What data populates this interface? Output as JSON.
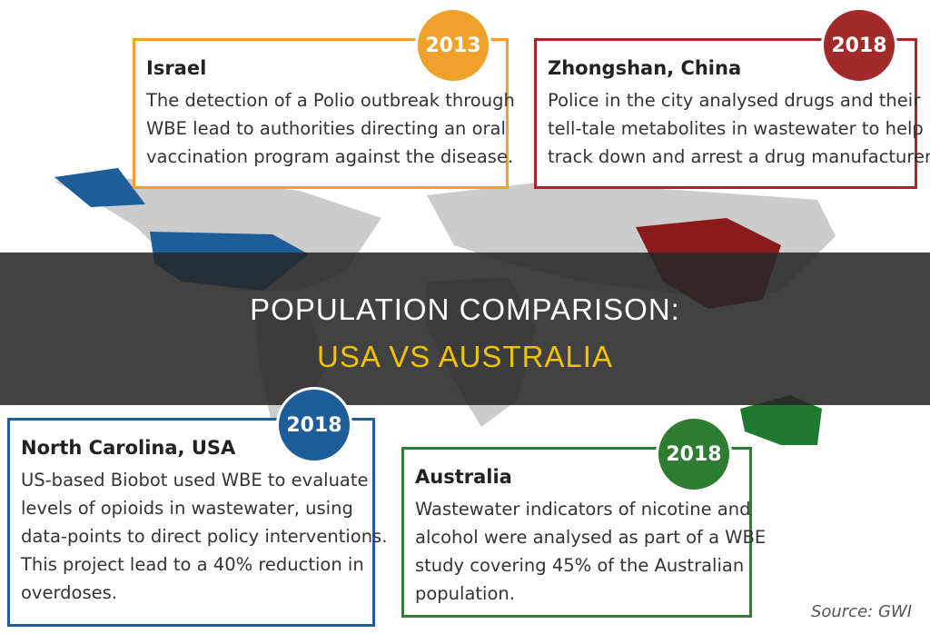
{
  "banner": {
    "line1": "POPULATION COMPARISON:",
    "line2": "USA VS AUSTRALIA"
  },
  "cards": [
    {
      "year": "2013",
      "title": "Israel",
      "body": [
        "The detection of a Polio outbreak through",
        "WBE lead to authorities directing an oral",
        "vaccination program against the disease."
      ]
    },
    {
      "year": "2018",
      "title": "Zhongshan, China",
      "body": [
        "Police in the city analysed drugs and their",
        "tell-tale metabolites in wastewater to help",
        "track down and arrest a drug manufacturer."
      ]
    },
    {
      "year": "2018",
      "title": "North Carolina, USA",
      "body": [
        "US-based Biobot used WBE to evaluate",
        "levels of opioids in wastewater, using",
        "data-points to direct policy interventions.",
        "This project lead to a 40% reduction in",
        "overdoses."
      ]
    },
    {
      "year": "2018",
      "title": "Australia",
      "body": [
        "Wastewater indicators of nicotine and",
        "alcohol were analysed as part of a WBE",
        "study covering 45% of the Australian",
        "population."
      ]
    }
  ],
  "source": "Source: GWI"
}
